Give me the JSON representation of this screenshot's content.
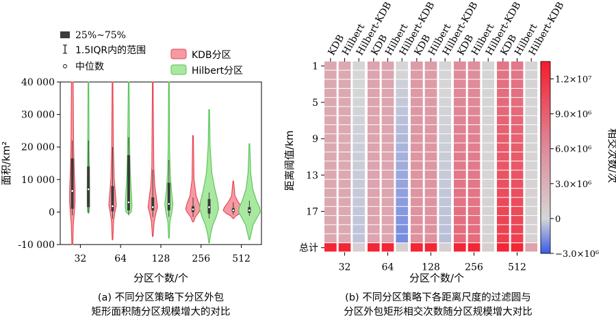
{
  "panel_a": {
    "caption_line1": "(a) 不同分区策略下分区外包",
    "caption_line2": "矩形面积随分区规模增大的对比",
    "legend": {
      "box_label": "25%~75%",
      "whisker_label": "1.5IQR内的范围",
      "median_label": "中位数",
      "kdb_label": "KDB分区",
      "hilbert_label": "Hilbert分区"
    }
  },
  "panel_b": {
    "caption_line1": "(b) 不同分区策略下各距离尺度的过滤圆与",
    "caption_line2": "分区外包矩形相交次数随分区规模增大对比"
  },
  "colors": {
    "kdb": "#e8414b",
    "kdb_fill": "#f59aa3",
    "hilbert": "#55c255",
    "hilbert_fill": "#a9e8a0",
    "box": "#3b3b3b"
  },
  "chart_data": [
    {
      "type": "violin",
      "xlabel": "分区个数/个",
      "ylabel": "面积/km²",
      "ylim": [
        -10000,
        40000
      ],
      "yticks": [
        -10000,
        0,
        10000,
        20000,
        30000,
        40000
      ],
      "ytick_labels": [
        "-10 000",
        "0",
        "10 000",
        "20 000",
        "30 000",
        "40 000"
      ],
      "categories": [
        "32",
        "64",
        "128",
        "256",
        "512"
      ],
      "series": [
        {
          "name": "KDB分区",
          "data": [
            {
              "min": -10000,
              "max": 40000,
              "q1": 1000,
              "q3": 16500,
              "median": 6500,
              "wlo": -1000,
              "whi": 22000,
              "halfwidth_kde": [
                [
                  40000,
                  0.05
                ],
                [
                  20000,
                  0.08
                ],
                [
                  12000,
                  0.12
                ],
                [
                  7000,
                  0.16
                ],
                [
                  3000,
                  0.16
                ],
                [
                  0,
                  0.12
                ],
                [
                  -4000,
                  0.06
                ],
                [
                  -10000,
                  0.03
                ]
              ]
            },
            {
              "min": -8500,
              "max": 40000,
              "q1": 200,
              "q3": 8000,
              "median": 1800,
              "wlo": -2000,
              "whi": 20000,
              "halfwidth_kde": [
                [
                  40000,
                  0.02
                ],
                [
                  20000,
                  0.05
                ],
                [
                  10000,
                  0.1
                ],
                [
                  5000,
                  0.18
                ],
                [
                  2000,
                  0.22
                ],
                [
                  0,
                  0.14
                ],
                [
                  -3000,
                  0.06
                ],
                [
                  -8500,
                  0.02
                ]
              ]
            },
            {
              "min": -7500,
              "max": 40000,
              "q1": 500,
              "q3": 4500,
              "median": 1500,
              "wlo": -1500,
              "whi": 13000,
              "halfwidth_kde": [
                [
                  40000,
                  0.02
                ],
                [
                  14000,
                  0.06
                ],
                [
                  8000,
                  0.12
                ],
                [
                  4000,
                  0.22
                ],
                [
                  1500,
                  0.28
                ],
                [
                  0,
                  0.2
                ],
                [
                  -3000,
                  0.08
                ],
                [
                  -7500,
                  0.02
                ]
              ]
            },
            {
              "min": -3000,
              "max": 23500,
              "q1": 0,
              "q3": 1800,
              "median": 800,
              "wlo": -1500,
              "whi": 4500,
              "halfwidth_kde": [
                [
                  23500,
                  0.02
                ],
                [
                  10000,
                  0.06
                ],
                [
                  5000,
                  0.18
                ],
                [
                  2500,
                  0.36
                ],
                [
                  1000,
                  0.44
                ],
                [
                  0,
                  0.36
                ],
                [
                  -1500,
                  0.14
                ],
                [
                  -3000,
                  0.03
                ]
              ]
            },
            {
              "min": -2000,
              "max": 9500,
              "q1": 0,
              "q3": 1200,
              "median": 500,
              "wlo": -800,
              "whi": 3000,
              "halfwidth_kde": [
                [
                  9500,
                  0.02
                ],
                [
                  5000,
                  0.1
                ],
                [
                  3000,
                  0.3
                ],
                [
                  1500,
                  0.52
                ],
                [
                  500,
                  0.6
                ],
                [
                  -500,
                  0.4
                ],
                [
                  -1200,
                  0.14
                ],
                [
                  -2000,
                  0.02
                ]
              ]
            }
          ]
        },
        {
          "name": "Hilbert分区",
          "data": [
            {
              "min": 0,
              "max": 40000,
              "q1": 1500,
              "q3": 14000,
              "median": 7000,
              "wlo": -500,
              "whi": 22000,
              "halfwidth_kde": [
                [
                  40000,
                  0.02
                ],
                [
                  20000,
                  0.04
                ],
                [
                  12000,
                  0.06
                ],
                [
                  7000,
                  0.07
                ],
                [
                  2000,
                  0.07
                ],
                [
                  0,
                  0.05
                ]
              ]
            },
            {
              "min": -500,
              "max": 40000,
              "q1": 500,
              "q3": 17500,
              "median": 3000,
              "wlo": -1000,
              "whi": 23000,
              "halfwidth_kde": [
                [
                  40000,
                  0.02
                ],
                [
                  20000,
                  0.06
                ],
                [
                  12000,
                  0.1
                ],
                [
                  6000,
                  0.16
                ],
                [
                  2000,
                  0.2
                ],
                [
                  0,
                  0.16
                ],
                [
                  -500,
                  0.04
                ]
              ]
            },
            {
              "min": -8000,
              "max": 40000,
              "q1": 500,
              "q3": 9000,
              "median": 2500,
              "wlo": -1500,
              "whi": 16000,
              "halfwidth_kde": [
                [
                  40000,
                  0.02
                ],
                [
                  20000,
                  0.04
                ],
                [
                  12000,
                  0.08
                ],
                [
                  6000,
                  0.16
                ],
                [
                  2500,
                  0.24
                ],
                [
                  0,
                  0.18
                ],
                [
                  -3000,
                  0.06
                ],
                [
                  -8000,
                  0.02
                ]
              ]
            },
            {
              "min": -9500,
              "max": 31500,
              "q1": -500,
              "q3": 4000,
              "median": 1500,
              "wlo": -2000,
              "whi": 6000,
              "halfwidth_kde": [
                [
                  31500,
                  0.02
                ],
                [
                  20000,
                  0.06
                ],
                [
                  12000,
                  0.16
                ],
                [
                  7000,
                  0.34
                ],
                [
                  3000,
                  0.52
                ],
                [
                  1000,
                  0.56
                ],
                [
                  -1500,
                  0.42
                ],
                [
                  -4000,
                  0.22
                ],
                [
                  -7000,
                  0.08
                ],
                [
                  -9500,
                  0.02
                ]
              ]
            },
            {
              "min": -8500,
              "max": 21000,
              "q1": -300,
              "q3": 1500,
              "median": 500,
              "wlo": -1200,
              "whi": 3500,
              "halfwidth_kde": [
                [
                  21000,
                  0.02
                ],
                [
                  12000,
                  0.08
                ],
                [
                  7000,
                  0.2
                ],
                [
                  3500,
                  0.42
                ],
                [
                  1500,
                  0.6
                ],
                [
                  0,
                  0.64
                ],
                [
                  -1500,
                  0.48
                ],
                [
                  -4000,
                  0.22
                ],
                [
                  -8500,
                  0.02
                ]
              ]
            }
          ]
        }
      ]
    },
    {
      "type": "heatmap",
      "xlabel": "分区个数/个",
      "ylabel": "距离阈值/km",
      "colorbar_label": "相交次数/次",
      "colorbar_range": [
        -3000000,
        13500000
      ],
      "colorbar_ticks": [
        -3000000,
        0,
        3000000,
        6000000,
        9000000,
        12000000
      ],
      "colorbar_tick_labels": [
        "−3.0×10⁶",
        "0",
        "3.0×10⁶",
        "6.0×10⁶",
        "9.0×10⁶",
        "1.2×10⁷"
      ],
      "groups": [
        "32",
        "64",
        "128",
        "256",
        "512"
      ],
      "methods": [
        "KDB",
        "Hilbert",
        "Hilbert-KDB"
      ],
      "row_tick_labels": [
        "1",
        "5",
        "9",
        "13",
        "17",
        "总计"
      ],
      "row_tick_index": [
        0,
        4,
        8,
        12,
        16,
        20
      ],
      "rows": 21,
      "values_by_group": [
        {
          "KDB": {
            "start": 3600000,
            "end": 3600000,
            "total": 12800000
          },
          "Hilbert": {
            "start": 3500000,
            "end": 3500000,
            "total": 12800000
          },
          "Hilbert-KDB": {
            "start": 50000,
            "end": -450000,
            "total": 600000
          }
        },
        {
          "KDB": {
            "start": 3900000,
            "end": 3900000,
            "total": 12800000
          },
          "Hilbert": {
            "start": 3800000,
            "end": 3800000,
            "total": 12800000
          },
          "Hilbert-KDB": {
            "start": 50000,
            "end": -1800000,
            "total": 600000
          }
        },
        {
          "KDB": {
            "start": 4600000,
            "end": 5400000,
            "total": 12800000
          },
          "Hilbert": {
            "start": 4500000,
            "end": 5400000,
            "total": 12800000
          },
          "Hilbert-KDB": {
            "start": 100000,
            "end": -550000,
            "total": 600000
          }
        },
        {
          "KDB": {
            "start": 5700000,
            "end": 8200000,
            "total": 12800000
          },
          "Hilbert": {
            "start": 5600000,
            "end": 8100000,
            "total": 12800000
          },
          "Hilbert-KDB": {
            "start": 50000,
            "end": 250000,
            "total": 600000
          }
        },
        {
          "KDB": {
            "start": 7400000,
            "end": 11200000,
            "total": 12800000
          },
          "Hilbert": {
            "start": 7300000,
            "end": 11000000,
            "total": 12800000
          },
          "Hilbert-KDB": {
            "start": 200000,
            "end": 300000,
            "total": 4000000
          }
        }
      ]
    }
  ]
}
